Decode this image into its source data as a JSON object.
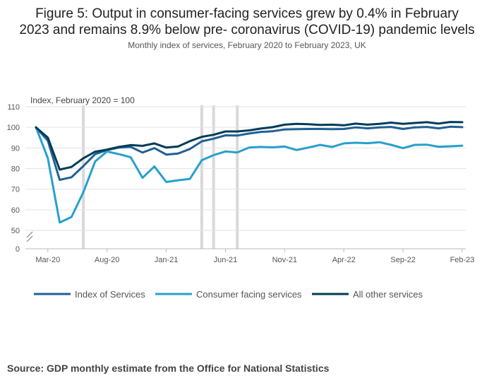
{
  "title": "Figure 5: Output in consumer-facing services grew by 0.4% in February 2023 and remains 8.9% below pre- coronavirus (COVID-19) pandemic levels",
  "title_line1": "Figure 5: Output in consumer-facing services grew by 0.4% in February",
  "title_line2": "2023 and remains 8.9% below pre- coronavirus (COVID-19) pandemic levels",
  "subtitle": "Monthly index of services, February 2020 to February 2023, UK",
  "source": "Source: GDP monthly estimate from the Office for National Statistics",
  "chart_data": {
    "type": "line",
    "ylabel": "Index, February 2020 = 100",
    "xlabel": "",
    "ylim": [
      0,
      110
    ],
    "y_axis_break": "between 0 and 50",
    "y_ticks": [
      0,
      50,
      60,
      70,
      80,
      90,
      100,
      110
    ],
    "x_tick_labels": [
      "Mar-20",
      "Aug-20",
      "Jan-21",
      "Jun-21",
      "Nov-21",
      "Apr-22",
      "Sep-22",
      "Feb-23"
    ],
    "x": [
      "Feb-20",
      "Mar-20",
      "Apr-20",
      "May-20",
      "Jun-20",
      "Jul-20",
      "Aug-20",
      "Sep-20",
      "Oct-20",
      "Nov-20",
      "Dec-20",
      "Jan-21",
      "Feb-21",
      "Mar-21",
      "Apr-21",
      "May-21",
      "Jun-21",
      "Jul-21",
      "Aug-21",
      "Sep-21",
      "Oct-21",
      "Nov-21",
      "Dec-21",
      "Jan-22",
      "Feb-22",
      "Mar-22",
      "Apr-22",
      "May-22",
      "Jun-22",
      "Jul-22",
      "Aug-22",
      "Sep-22",
      "Oct-22",
      "Nov-22",
      "Dec-22",
      "Jan-23",
      "Feb-23"
    ],
    "shaded_periods": [
      "Jun-20",
      "Apr-21",
      "May-21",
      "Jul-21"
    ],
    "grid": "horizontal",
    "legend_position": "bottom",
    "series": [
      {
        "name": "Index of Services",
        "color": "#206095",
        "values": [
          100,
          93.5,
          74.5,
          75.8,
          81.2,
          87.0,
          89.0,
          90.2,
          90.5,
          87.8,
          89.9,
          86.8,
          87.3,
          89.5,
          93.2,
          94.5,
          96.1,
          96.0,
          97.0,
          97.8,
          98.1,
          99.0,
          99.1,
          99.2,
          99.2,
          99.1,
          99.2,
          100.0,
          99.5,
          100.0,
          100.2,
          99.2,
          100.0,
          100.2,
          99.5,
          100.3,
          100.1
        ]
      },
      {
        "name": "Consumer facing services",
        "color": "#27a0cc",
        "values": [
          100,
          85.0,
          53.8,
          56.5,
          68.5,
          83.5,
          88.3,
          87.0,
          85.5,
          75.5,
          81.0,
          73.5,
          74.3,
          75.0,
          84.0,
          86.5,
          88.3,
          87.8,
          90.2,
          90.5,
          90.3,
          90.7,
          89.0,
          90.2,
          91.5,
          90.5,
          92.2,
          92.5,
          92.3,
          92.8,
          91.5,
          89.9,
          91.5,
          91.6,
          90.6,
          90.8,
          91.1
        ]
      },
      {
        "name": "All other services",
        "color": "#003c57",
        "values": [
          100,
          95.0,
          79.5,
          80.8,
          85.0,
          88.2,
          89.2,
          90.5,
          91.4,
          91.0,
          92.2,
          90.2,
          90.7,
          93.3,
          95.4,
          96.4,
          98.0,
          98.0,
          98.5,
          99.4,
          100.1,
          101.3,
          101.7,
          101.5,
          101.2,
          101.3,
          101.0,
          101.8,
          101.3,
          101.7,
          102.3,
          101.7,
          102.1,
          102.5,
          101.8,
          102.6,
          102.5
        ]
      }
    ]
  }
}
